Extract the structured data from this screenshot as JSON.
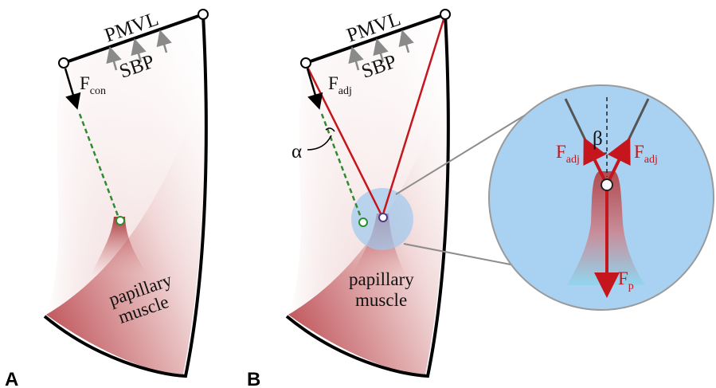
{
  "panels": {
    "a": {
      "letter": "A",
      "leaflet_label": "PMVL",
      "pressure_label": "SBP",
      "force_main": "F",
      "force_sub": "con",
      "muscle_line1": "papillary",
      "muscle_line2": "muscle"
    },
    "b": {
      "letter": "B",
      "leaflet_label": "PMVL",
      "pressure_label": "SBP",
      "force_main": "F",
      "force_sub": "adj",
      "angle_label": "α",
      "muscle_line1": "papillary",
      "muscle_line2": "muscle"
    },
    "zoom": {
      "angle_label": "β",
      "left_force_main": "F",
      "left_force_sub": "adj",
      "right_force_main": "F",
      "right_force_sub": "adj",
      "bottom_force_main": "F",
      "bottom_force_sub": "p"
    }
  },
  "colors": {
    "chord_red": "#c4161c",
    "chord_green": "#2e8b2e",
    "zoom_fill": "#a9d2f2",
    "muscle_red": "#b5474a",
    "pressure_arrow": "#8a8a8a"
  }
}
